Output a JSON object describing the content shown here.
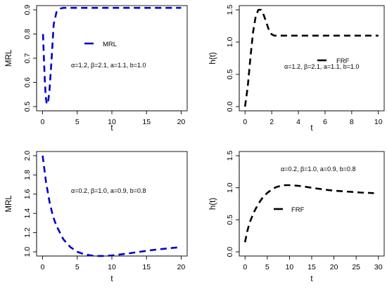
{
  "chart_data": [
    {
      "type": "line",
      "xlabel": "t",
      "ylabel": "MRL",
      "xlim": [
        0,
        20
      ],
      "ylim": [
        0.5,
        0.9
      ],
      "xticks": [
        "0",
        "5",
        "10",
        "15",
        "20"
      ],
      "yticks": [
        "0.5",
        "0.6",
        "0.7",
        "0.8",
        "0.9"
      ],
      "annotation": "α=1.2, β=2.1, a=1.1, b=1.0",
      "series": [
        {
          "name": "MRL",
          "color": "#0000cc",
          "dash": "dashed",
          "x": [
            0.05,
            0.15,
            0.3,
            0.45,
            0.6,
            0.8,
            1.0,
            1.3,
            1.6,
            2.0,
            2.5,
            3.0,
            4,
            6,
            8,
            10,
            12,
            14,
            16,
            18,
            20
          ],
          "y": [
            0.8,
            0.73,
            0.62,
            0.54,
            0.51,
            0.52,
            0.57,
            0.7,
            0.84,
            0.89,
            0.905,
            0.908,
            0.908,
            0.908,
            0.908,
            0.908,
            0.908,
            0.908,
            0.908,
            0.908,
            0.908
          ]
        }
      ]
    },
    {
      "type": "line",
      "xlabel": "t",
      "ylabel": "h(t)",
      "xlim": [
        0,
        10
      ],
      "ylim": [
        0,
        1.5
      ],
      "xticks": [
        "0",
        "2",
        "4",
        "6",
        "8",
        "10"
      ],
      "yticks": [
        "0.0",
        "0.5",
        "1.0",
        "1.5"
      ],
      "annotation": "α=1.2, β=2.1, a=1.1, b=1.0",
      "series": [
        {
          "name": "FRF",
          "color": "#000000",
          "dash": "dashed",
          "x": [
            0,
            0.2,
            0.4,
            0.6,
            0.8,
            1.0,
            1.2,
            1.4,
            1.6,
            1.8,
            2.0,
            2.2,
            2.5,
            3,
            4,
            5,
            6,
            7,
            8,
            9,
            10
          ],
          "y": [
            0.0,
            0.3,
            0.75,
            1.15,
            1.4,
            1.5,
            1.5,
            1.42,
            1.3,
            1.18,
            1.12,
            1.1,
            1.1,
            1.1,
            1.1,
            1.1,
            1.1,
            1.1,
            1.1,
            1.1,
            1.1
          ]
        }
      ]
    },
    {
      "type": "line",
      "xlabel": "t",
      "ylabel": "MRL",
      "xlim": [
        0,
        20
      ],
      "ylim": [
        1.0,
        2.0
      ],
      "xticks": [
        "0",
        "5",
        "10",
        "15",
        "20"
      ],
      "yticks": [
        "1.0",
        "1.2",
        "1.4",
        "1.6",
        "1.8",
        "2.0"
      ],
      "annotation": "α=0.2, β=1.0, a=0.9, b=0.8",
      "series": [
        {
          "name": "",
          "color": "#0000cc",
          "dash": "dashed",
          "x": [
            0,
            0.5,
            1,
            1.5,
            2,
            3,
            4,
            5,
            6,
            7,
            8,
            9,
            10,
            12,
            14,
            16,
            18,
            20
          ],
          "y": [
            2.0,
            1.72,
            1.52,
            1.37,
            1.27,
            1.13,
            1.05,
            1.0,
            0.975,
            0.962,
            0.957,
            0.957,
            0.962,
            0.98,
            1.0,
            1.02,
            1.035,
            1.05
          ]
        }
      ]
    },
    {
      "type": "line",
      "xlabel": "t",
      "ylabel": "h(t)",
      "xlim": [
        0,
        30
      ],
      "ylim": [
        0,
        1.5
      ],
      "xticks": [
        "0",
        "5",
        "10",
        "15",
        "20",
        "25",
        "30"
      ],
      "yticks": [
        "0.0",
        "0.5",
        "1.0",
        "1.5"
      ],
      "annotation": "α=0.2, β=1.0, a=0.9, b=0.8",
      "series": [
        {
          "name": "FRF",
          "color": "#000000",
          "dash": "dashed",
          "x": [
            0,
            0.5,
            1,
            2,
            3,
            4,
            5,
            6,
            7,
            8,
            9,
            10,
            12,
            14,
            16,
            18,
            20,
            22,
            24,
            26,
            28,
            29
          ],
          "y": [
            0.15,
            0.32,
            0.45,
            0.62,
            0.75,
            0.85,
            0.92,
            0.97,
            1.01,
            1.03,
            1.04,
            1.04,
            1.03,
            1.01,
            0.99,
            0.97,
            0.955,
            0.945,
            0.935,
            0.925,
            0.92,
            0.915
          ]
        }
      ]
    }
  ]
}
